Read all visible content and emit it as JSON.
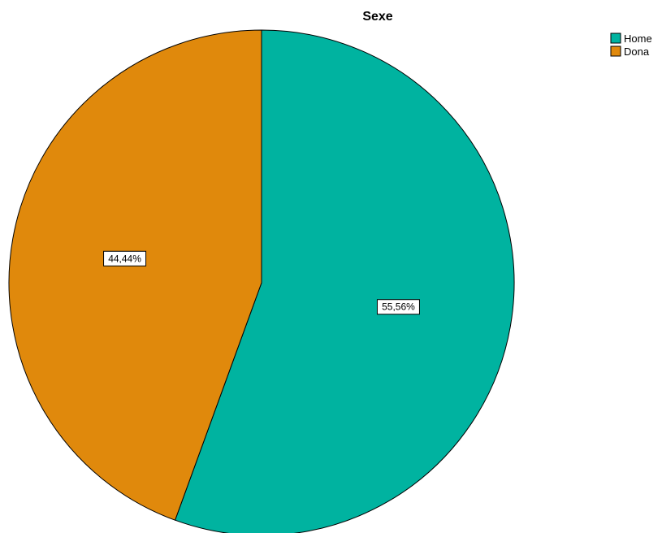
{
  "chart_data": {
    "type": "pie",
    "title": "Sexe",
    "categories": [
      "Home",
      "Dona"
    ],
    "values": [
      55.56,
      44.44
    ],
    "data_labels": [
      "55,56%",
      "44,44%"
    ],
    "colors": [
      "#00b3a0",
      "#e0890c"
    ],
    "start_angle": "12 o'clock",
    "direction": "clockwise",
    "legend": {
      "position": "top-right",
      "entries": [
        "Home",
        "Dona"
      ]
    }
  }
}
